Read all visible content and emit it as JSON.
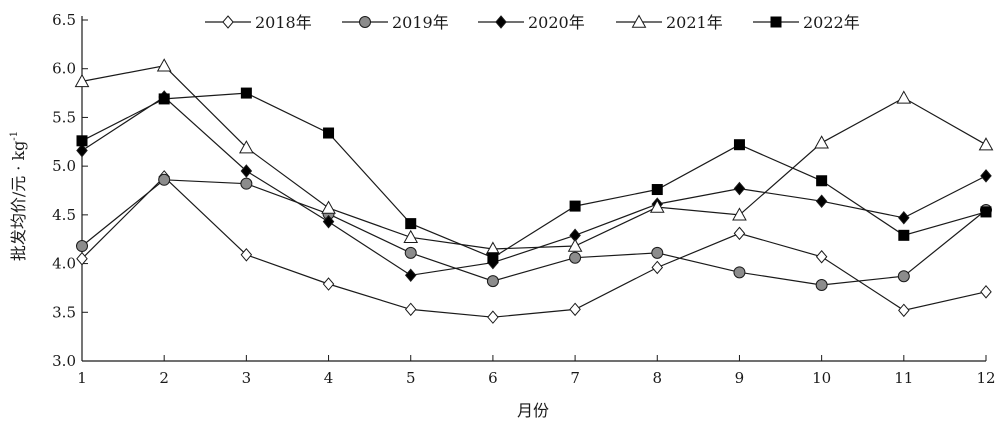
{
  "chart_data": {
    "type": "line",
    "xlabel": "月份",
    "ylabel": "批发均价/元 · kg",
    "ylabel_superscript": "-1",
    "categories": [
      "1",
      "2",
      "3",
      "4",
      "5",
      "6",
      "7",
      "8",
      "9",
      "10",
      "11",
      "12"
    ],
    "ylim": [
      3.0,
      6.5
    ],
    "yticks": [
      "3.0",
      "3.5",
      "4.0",
      "4.5",
      "5.0",
      "5.5",
      "6.0",
      "6.5"
    ],
    "grid": false,
    "legend_position": "top",
    "series": [
      {
        "name": "2018年",
        "marker": "diamond-open",
        "values": [
          4.05,
          4.89,
          4.09,
          3.79,
          3.53,
          3.45,
          3.53,
          3.96,
          4.31,
          4.07,
          3.52,
          3.71
        ]
      },
      {
        "name": "2019年",
        "marker": "circle-gray",
        "values": [
          4.18,
          4.86,
          4.82,
          4.51,
          4.11,
          3.82,
          4.06,
          4.11,
          3.91,
          3.78,
          3.87,
          4.55
        ]
      },
      {
        "name": "2020年",
        "marker": "diamond-filled",
        "values": [
          5.16,
          5.71,
          4.95,
          4.43,
          3.88,
          4.01,
          4.29,
          4.61,
          4.77,
          4.64,
          4.47,
          4.9
        ]
      },
      {
        "name": "2021年",
        "marker": "triangle-open",
        "values": [
          5.87,
          6.03,
          5.19,
          4.57,
          4.27,
          4.15,
          4.18,
          4.58,
          4.5,
          5.24,
          5.7,
          5.22
        ]
      },
      {
        "name": "2022年",
        "marker": "square-filled",
        "values": [
          5.26,
          5.69,
          5.75,
          5.34,
          4.41,
          4.06,
          4.59,
          4.76,
          5.22,
          4.85,
          4.29,
          4.53
        ]
      }
    ]
  }
}
